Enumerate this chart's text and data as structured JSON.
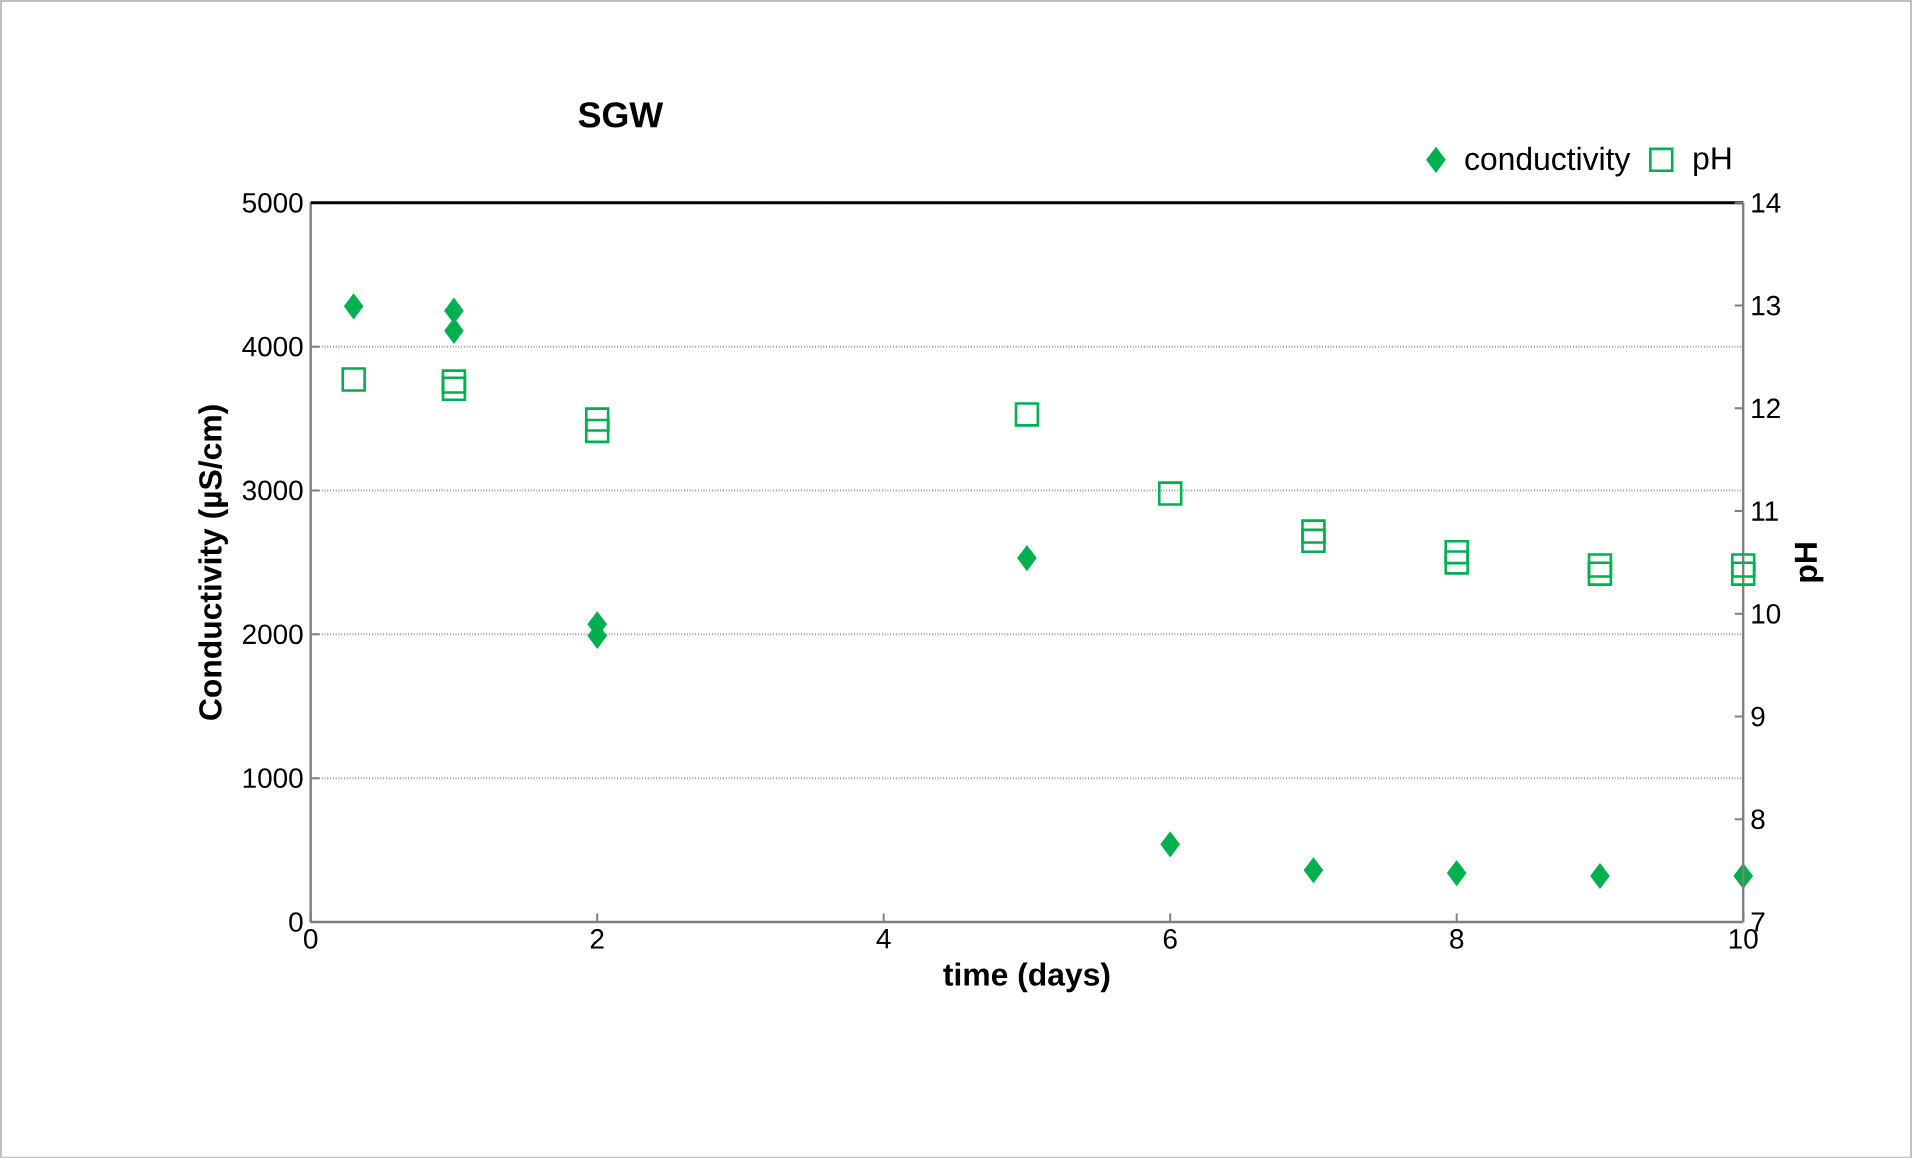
{
  "chart_data": {
    "type": "scatter",
    "title": "SGW",
    "xlabel": "time (days)",
    "ylabel": "Conductivity (µS/cm)",
    "y2label": "pH",
    "xlim": [
      0,
      10
    ],
    "xticks": [
      0,
      2,
      4,
      6,
      8,
      10
    ],
    "ylim": [
      0,
      5000
    ],
    "yticks": [
      0,
      1000,
      2000,
      3000,
      4000,
      5000
    ],
    "y2lim": [
      7,
      14
    ],
    "y2ticks": [
      7,
      8,
      9,
      10,
      11,
      12,
      13,
      14
    ],
    "grid": "y",
    "legend": "top right",
    "series": [
      {
        "name": "conductivity",
        "color": "#00b050",
        "marker": "diamond",
        "x": [
          0.3,
          1,
          1,
          2,
          2,
          5,
          6,
          7,
          8,
          9,
          10
        ],
        "values": [
          4280,
          4250,
          4110,
          2070,
          1990,
          2530,
          540,
          360,
          340,
          320,
          320
        ]
      },
      {
        "name": "pH",
        "color": "#00b050",
        "marker": "square",
        "axis": "y2",
        "x": [
          0.3,
          1,
          1,
          2,
          2,
          5,
          6,
          7,
          7,
          8,
          8,
          9,
          9,
          10,
          10
        ],
        "values": [
          12.28,
          12.26,
          12.19,
          11.89,
          11.78,
          11.94,
          11.17,
          10.8,
          10.71,
          10.6,
          10.5,
          10.47,
          10.39,
          10.47,
          10.39
        ]
      }
    ]
  }
}
